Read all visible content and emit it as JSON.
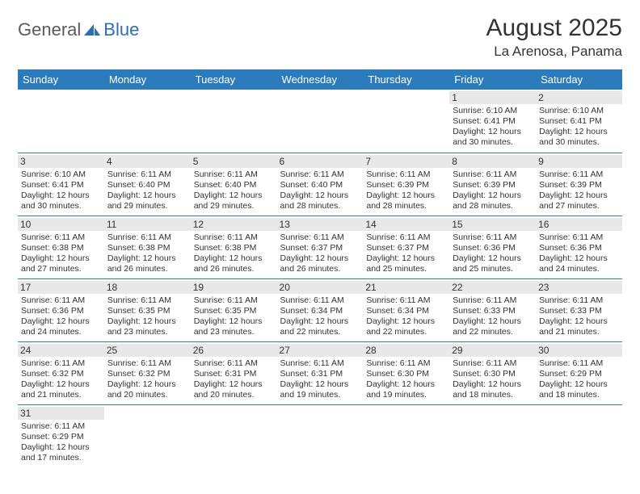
{
  "logo": {
    "part1": "General",
    "part2": "Blue"
  },
  "title": "August 2025",
  "location": "La Arenosa, Panama",
  "colors": {
    "header_bg": "#2b7bbd",
    "header_fg": "#ffffff",
    "daynum_bg": "#e8e8e8",
    "border": "#2b7bbd",
    "logo_gray": "#5a5a5a",
    "logo_blue": "#2b6fb0"
  },
  "dayHeaders": [
    "Sunday",
    "Monday",
    "Tuesday",
    "Wednesday",
    "Thursday",
    "Friday",
    "Saturday"
  ],
  "weeks": [
    [
      {
        "n": "",
        "rise": "",
        "set": "",
        "dl": ""
      },
      {
        "n": "",
        "rise": "",
        "set": "",
        "dl": ""
      },
      {
        "n": "",
        "rise": "",
        "set": "",
        "dl": ""
      },
      {
        "n": "",
        "rise": "",
        "set": "",
        "dl": ""
      },
      {
        "n": "",
        "rise": "",
        "set": "",
        "dl": ""
      },
      {
        "n": "1",
        "rise": "6:10 AM",
        "set": "6:41 PM",
        "dl": "12 hours and 30 minutes."
      },
      {
        "n": "2",
        "rise": "6:10 AM",
        "set": "6:41 PM",
        "dl": "12 hours and 30 minutes."
      }
    ],
    [
      {
        "n": "3",
        "rise": "6:10 AM",
        "set": "6:41 PM",
        "dl": "12 hours and 30 minutes."
      },
      {
        "n": "4",
        "rise": "6:11 AM",
        "set": "6:40 PM",
        "dl": "12 hours and 29 minutes."
      },
      {
        "n": "5",
        "rise": "6:11 AM",
        "set": "6:40 PM",
        "dl": "12 hours and 29 minutes."
      },
      {
        "n": "6",
        "rise": "6:11 AM",
        "set": "6:40 PM",
        "dl": "12 hours and 28 minutes."
      },
      {
        "n": "7",
        "rise": "6:11 AM",
        "set": "6:39 PM",
        "dl": "12 hours and 28 minutes."
      },
      {
        "n": "8",
        "rise": "6:11 AM",
        "set": "6:39 PM",
        "dl": "12 hours and 28 minutes."
      },
      {
        "n": "9",
        "rise": "6:11 AM",
        "set": "6:39 PM",
        "dl": "12 hours and 27 minutes."
      }
    ],
    [
      {
        "n": "10",
        "rise": "6:11 AM",
        "set": "6:38 PM",
        "dl": "12 hours and 27 minutes."
      },
      {
        "n": "11",
        "rise": "6:11 AM",
        "set": "6:38 PM",
        "dl": "12 hours and 26 minutes."
      },
      {
        "n": "12",
        "rise": "6:11 AM",
        "set": "6:38 PM",
        "dl": "12 hours and 26 minutes."
      },
      {
        "n": "13",
        "rise": "6:11 AM",
        "set": "6:37 PM",
        "dl": "12 hours and 26 minutes."
      },
      {
        "n": "14",
        "rise": "6:11 AM",
        "set": "6:37 PM",
        "dl": "12 hours and 25 minutes."
      },
      {
        "n": "15",
        "rise": "6:11 AM",
        "set": "6:36 PM",
        "dl": "12 hours and 25 minutes."
      },
      {
        "n": "16",
        "rise": "6:11 AM",
        "set": "6:36 PM",
        "dl": "12 hours and 24 minutes."
      }
    ],
    [
      {
        "n": "17",
        "rise": "6:11 AM",
        "set": "6:36 PM",
        "dl": "12 hours and 24 minutes."
      },
      {
        "n": "18",
        "rise": "6:11 AM",
        "set": "6:35 PM",
        "dl": "12 hours and 23 minutes."
      },
      {
        "n": "19",
        "rise": "6:11 AM",
        "set": "6:35 PM",
        "dl": "12 hours and 23 minutes."
      },
      {
        "n": "20",
        "rise": "6:11 AM",
        "set": "6:34 PM",
        "dl": "12 hours and 22 minutes."
      },
      {
        "n": "21",
        "rise": "6:11 AM",
        "set": "6:34 PM",
        "dl": "12 hours and 22 minutes."
      },
      {
        "n": "22",
        "rise": "6:11 AM",
        "set": "6:33 PM",
        "dl": "12 hours and 22 minutes."
      },
      {
        "n": "23",
        "rise": "6:11 AM",
        "set": "6:33 PM",
        "dl": "12 hours and 21 minutes."
      }
    ],
    [
      {
        "n": "24",
        "rise": "6:11 AM",
        "set": "6:32 PM",
        "dl": "12 hours and 21 minutes."
      },
      {
        "n": "25",
        "rise": "6:11 AM",
        "set": "6:32 PM",
        "dl": "12 hours and 20 minutes."
      },
      {
        "n": "26",
        "rise": "6:11 AM",
        "set": "6:31 PM",
        "dl": "12 hours and 20 minutes."
      },
      {
        "n": "27",
        "rise": "6:11 AM",
        "set": "6:31 PM",
        "dl": "12 hours and 19 minutes."
      },
      {
        "n": "28",
        "rise": "6:11 AM",
        "set": "6:30 PM",
        "dl": "12 hours and 19 minutes."
      },
      {
        "n": "29",
        "rise": "6:11 AM",
        "set": "6:30 PM",
        "dl": "12 hours and 18 minutes."
      },
      {
        "n": "30",
        "rise": "6:11 AM",
        "set": "6:29 PM",
        "dl": "12 hours and 18 minutes."
      }
    ],
    [
      {
        "n": "31",
        "rise": "6:11 AM",
        "set": "6:29 PM",
        "dl": "12 hours and 17 minutes."
      },
      {
        "n": "",
        "rise": "",
        "set": "",
        "dl": ""
      },
      {
        "n": "",
        "rise": "",
        "set": "",
        "dl": ""
      },
      {
        "n": "",
        "rise": "",
        "set": "",
        "dl": ""
      },
      {
        "n": "",
        "rise": "",
        "set": "",
        "dl": ""
      },
      {
        "n": "",
        "rise": "",
        "set": "",
        "dl": ""
      },
      {
        "n": "",
        "rise": "",
        "set": "",
        "dl": ""
      }
    ]
  ]
}
